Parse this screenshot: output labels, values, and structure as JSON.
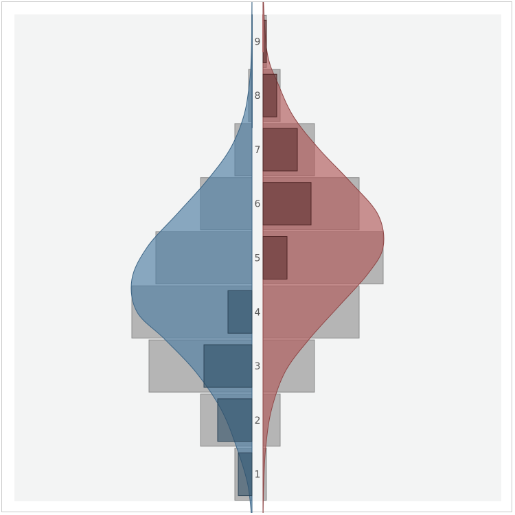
{
  "chart_data": {
    "type": "pyramid",
    "categories": [
      "1",
      "2",
      "3",
      "4",
      "5",
      "6",
      "7",
      "8",
      "9"
    ],
    "left": {
      "color": "#4f7ea3",
      "outer": [
        0.5,
        1.5,
        3.0,
        3.5,
        2.8,
        1.5,
        0.5,
        0.1,
        0.0
      ],
      "inner": [
        0.4,
        1.0,
        1.4,
        0.7,
        0.0,
        0.0,
        0.0,
        0.0,
        0.0
      ],
      "density": [
        [
          0.1,
          0.0
        ],
        [
          0.8,
          0.12
        ],
        [
          1.5,
          0.45
        ],
        [
          2.2,
          0.9
        ],
        [
          2.9,
          1.65
        ],
        [
          3.5,
          2.55
        ],
        [
          4.0,
          3.35
        ],
        [
          4.6,
          3.5
        ],
        [
          5.2,
          3.05
        ],
        [
          5.8,
          2.2
        ],
        [
          6.4,
          1.35
        ],
        [
          7.0,
          0.65
        ],
        [
          7.6,
          0.25
        ],
        [
          8.2,
          0.08
        ],
        [
          8.8,
          0.02
        ],
        [
          9.9,
          0.0
        ]
      ]
    },
    "right": {
      "color": "#b05a5a",
      "outer": [
        0.1,
        0.5,
        1.5,
        2.8,
        3.5,
        2.8,
        1.5,
        0.5,
        0.1
      ],
      "inner": [
        0.0,
        0.0,
        0.0,
        0.0,
        0.7,
        1.4,
        1.0,
        0.4,
        0.1
      ],
      "density": [
        [
          0.1,
          0.0
        ],
        [
          0.8,
          0.02
        ],
        [
          1.5,
          0.08
        ],
        [
          2.2,
          0.25
        ],
        [
          2.9,
          0.65
        ],
        [
          3.5,
          1.35
        ],
        [
          4.1,
          2.2
        ],
        [
          4.7,
          3.05
        ],
        [
          5.2,
          3.5
        ],
        [
          5.8,
          3.35
        ],
        [
          6.4,
          2.55
        ],
        [
          7.0,
          1.65
        ],
        [
          7.6,
          0.9
        ],
        [
          8.2,
          0.45
        ],
        [
          8.8,
          0.12
        ],
        [
          9.9,
          0.0
        ]
      ]
    },
    "xlim": [
      0,
      4
    ],
    "ylim": [
      0.5,
      9.5
    ],
    "grid": false,
    "legend": "none"
  },
  "colors": {
    "panel": "#f3f4f4",
    "outer_bar": "#b5b5b5",
    "inner_bar": "#2f4f66",
    "inner_bar_right": "#5e2e2e",
    "center_line": "#4a6e8a"
  }
}
